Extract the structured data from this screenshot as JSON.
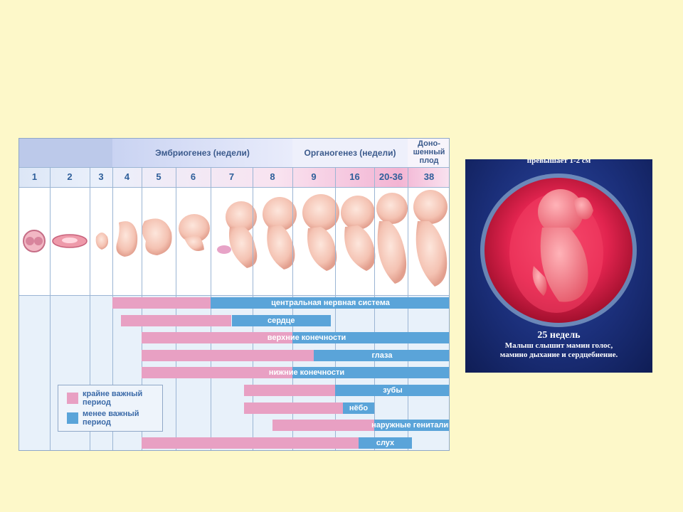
{
  "chart": {
    "stage_headers": {
      "embryogenesis": "Эмбриогенез (недели)",
      "organogenesis": "Органогенез (недели)",
      "term_line1": "Доно-",
      "term_line2": "шенный",
      "term_line3": "плод"
    },
    "weeks": [
      "1",
      "2",
      "3",
      "4",
      "5",
      "6",
      "7",
      "8",
      "9",
      "16",
      "20-36",
      "38"
    ],
    "bars": [
      {
        "label": "центральная нервная система",
        "pink": [
          3,
          6
        ],
        "blue": [
          6,
          12
        ]
      },
      {
        "label": "сердце",
        "pink": [
          3.3,
          6.5
        ],
        "blue": [
          6.5,
          8.9
        ]
      },
      {
        "label": "верхние конечности",
        "pink": [
          4,
          8
        ],
        "blue": [
          8,
          12
        ]
      },
      {
        "label": "глаза",
        "pink": [
          4,
          8.5
        ],
        "blue": [
          8.5,
          12
        ]
      },
      {
        "label": "нижние конечности",
        "pink": [
          4,
          8
        ],
        "blue": [
          8,
          12
        ]
      },
      {
        "label": "зубы",
        "pink": [
          6.8,
          9
        ],
        "blue": [
          9,
          12
        ]
      },
      {
        "label": "нёбо",
        "pink": [
          6.8,
          9.2
        ],
        "blue": [
          9.2,
          10
        ]
      },
      {
        "label": "наружные гениталии",
        "pink": [
          7.5,
          10
        ],
        "blue": [
          10,
          12
        ]
      },
      {
        "label": "слух",
        "pink": [
          4,
          9.6
        ],
        "blue": [
          9.6,
          11.1
        ]
      }
    ],
    "legend": {
      "critical_line1": "крайне важный",
      "critical_line2": "период",
      "less_line1": "менее важный",
      "less_line2": "период"
    },
    "colors": {
      "critical": "#e8a0c3",
      "less": "#5aa4d9"
    }
  },
  "photo": {
    "caption_top": "превышает 1-2 см",
    "caption_weeks": "25 недель",
    "caption_line1": "Малыш слышит мамин голос,",
    "caption_line2": "мамино дыхание и сердцебиение."
  }
}
